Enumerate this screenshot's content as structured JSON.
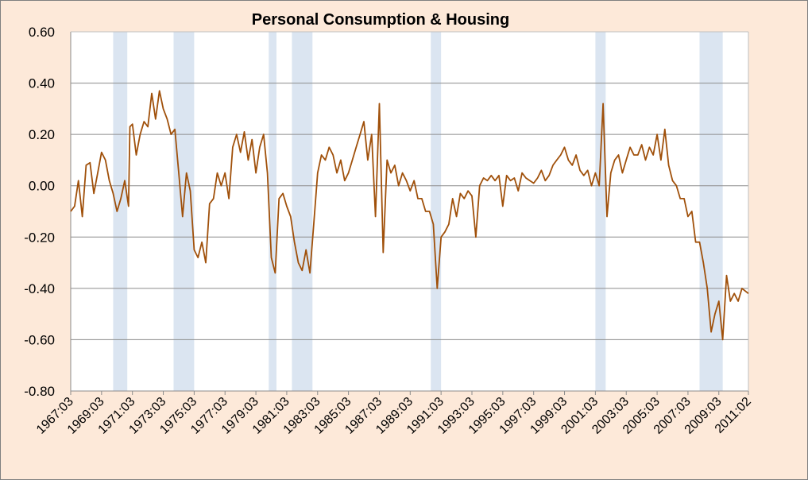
{
  "chart_data": {
    "type": "line",
    "title": "Personal Consumption & Housing",
    "xlabel": "",
    "ylabel": "",
    "ylim": [
      -0.8,
      0.6
    ],
    "y_ticks": [
      0.6,
      0.4,
      0.2,
      0.0,
      -0.2,
      -0.4,
      -0.6,
      -0.8
    ],
    "y_tick_labels": [
      "0.60",
      "0.40",
      "0.20",
      "0.00",
      "-0.20",
      "-0.40",
      "-0.60",
      "-0.80"
    ],
    "x_range": [
      "1967-03",
      "2011-02"
    ],
    "x_ticks": [
      "1967-03",
      "1969-03",
      "1971-03",
      "1973-03",
      "1975-03",
      "1977-03",
      "1979-03",
      "1981-03",
      "1983-03",
      "1985-03",
      "1987-03",
      "1989-03",
      "1991-03",
      "1993-03",
      "1995-03",
      "1997-03",
      "1999-03",
      "2001-03",
      "2003-03",
      "2005-03",
      "2007-03",
      "2009-03",
      "2011-02"
    ],
    "x_tick_labels": [
      "1967:03",
      "1969:03",
      "1971:03",
      "1973:03",
      "1975:03",
      "1977:03",
      "1979:03",
      "1981:03",
      "1983:03",
      "1985:03",
      "1987:03",
      "1989:03",
      "1991:03",
      "1993:03",
      "1995:03",
      "1997:03",
      "1999:03",
      "2001:03",
      "2003:03",
      "2005:03",
      "2007:03",
      "2009:03",
      "2011:02"
    ],
    "grid": {
      "horizontal": true,
      "vertical": false
    },
    "legend": "none",
    "recession_bands": [
      {
        "start": "1969-12",
        "end": "1970-11"
      },
      {
        "start": "1973-11",
        "end": "1975-03"
      },
      {
        "start": "1980-01",
        "end": "1980-07"
      },
      {
        "start": "1981-07",
        "end": "1982-11"
      },
      {
        "start": "1990-07",
        "end": "1991-03"
      },
      {
        "start": "2001-03",
        "end": "2001-11"
      },
      {
        "start": "2007-12",
        "end": "2009-06"
      }
    ],
    "series": [
      {
        "color": "#a0500a",
        "points": [
          [
            "1967-03",
            -0.1
          ],
          [
            "1967-06",
            -0.08
          ],
          [
            "1967-09",
            0.02
          ],
          [
            "1967-12",
            -0.12
          ],
          [
            "1968-03",
            0.08
          ],
          [
            "1968-06",
            0.09
          ],
          [
            "1968-09",
            -0.03
          ],
          [
            "1968-12",
            0.05
          ],
          [
            "1969-03",
            0.13
          ],
          [
            "1969-06",
            0.1
          ],
          [
            "1969-09",
            0.02
          ],
          [
            "1969-12",
            -0.03
          ],
          [
            "1970-03",
            -0.1
          ],
          [
            "1970-06",
            -0.05
          ],
          [
            "1970-09",
            0.02
          ],
          [
            "1970-12",
            -0.08
          ],
          [
            "1971-01",
            0.23
          ],
          [
            "1971-03",
            0.24
          ],
          [
            "1971-06",
            0.12
          ],
          [
            "1971-09",
            0.2
          ],
          [
            "1971-12",
            0.25
          ],
          [
            "1972-03",
            0.23
          ],
          [
            "1972-06",
            0.36
          ],
          [
            "1972-09",
            0.26
          ],
          [
            "1972-12",
            0.37
          ],
          [
            "1973-03",
            0.3
          ],
          [
            "1973-06",
            0.26
          ],
          [
            "1973-09",
            0.2
          ],
          [
            "1973-12",
            0.22
          ],
          [
            "1974-03",
            0.05
          ],
          [
            "1974-06",
            -0.12
          ],
          [
            "1974-09",
            0.05
          ],
          [
            "1974-12",
            -0.02
          ],
          [
            "1975-03",
            -0.25
          ],
          [
            "1975-06",
            -0.28
          ],
          [
            "1975-09",
            -0.22
          ],
          [
            "1975-12",
            -0.3
          ],
          [
            "1976-03",
            -0.07
          ],
          [
            "1976-06",
            -0.05
          ],
          [
            "1976-09",
            0.05
          ],
          [
            "1976-12",
            0.0
          ],
          [
            "1977-03",
            0.05
          ],
          [
            "1977-06",
            -0.05
          ],
          [
            "1977-09",
            0.15
          ],
          [
            "1977-12",
            0.2
          ],
          [
            "1978-03",
            0.13
          ],
          [
            "1978-06",
            0.21
          ],
          [
            "1978-09",
            0.1
          ],
          [
            "1978-12",
            0.18
          ],
          [
            "1979-03",
            0.05
          ],
          [
            "1979-06",
            0.15
          ],
          [
            "1979-09",
            0.2
          ],
          [
            "1979-12",
            0.05
          ],
          [
            "1980-03",
            -0.28
          ],
          [
            "1980-06",
            -0.34
          ],
          [
            "1980-09",
            -0.05
          ],
          [
            "1980-12",
            -0.03
          ],
          [
            "1981-03",
            -0.08
          ],
          [
            "1981-06",
            -0.12
          ],
          [
            "1981-09",
            -0.22
          ],
          [
            "1981-12",
            -0.3
          ],
          [
            "1982-03",
            -0.33
          ],
          [
            "1982-06",
            -0.25
          ],
          [
            "1982-09",
            -0.34
          ],
          [
            "1982-12",
            -0.15
          ],
          [
            "1983-03",
            0.05
          ],
          [
            "1983-06",
            0.12
          ],
          [
            "1983-09",
            0.1
          ],
          [
            "1983-12",
            0.15
          ],
          [
            "1984-03",
            0.12
          ],
          [
            "1984-06",
            0.05
          ],
          [
            "1984-09",
            0.1
          ],
          [
            "1984-12",
            0.02
          ],
          [
            "1985-03",
            0.05
          ],
          [
            "1985-06",
            0.1
          ],
          [
            "1985-09",
            0.15
          ],
          [
            "1985-12",
            0.2
          ],
          [
            "1986-03",
            0.25
          ],
          [
            "1986-06",
            0.1
          ],
          [
            "1986-09",
            0.2
          ],
          [
            "1986-12",
            -0.12
          ],
          [
            "1987-03",
            0.32
          ],
          [
            "1987-06",
            -0.26
          ],
          [
            "1987-09",
            0.1
          ],
          [
            "1987-12",
            0.05
          ],
          [
            "1988-03",
            0.08
          ],
          [
            "1988-06",
            0.0
          ],
          [
            "1988-09",
            0.05
          ],
          [
            "1988-12",
            0.02
          ],
          [
            "1989-03",
            -0.02
          ],
          [
            "1989-06",
            0.02
          ],
          [
            "1989-09",
            -0.05
          ],
          [
            "1989-12",
            -0.05
          ],
          [
            "1990-03",
            -0.1
          ],
          [
            "1990-06",
            -0.1
          ],
          [
            "1990-09",
            -0.15
          ],
          [
            "1990-12",
            -0.4
          ],
          [
            "1991-03",
            -0.2
          ],
          [
            "1991-06",
            -0.18
          ],
          [
            "1991-09",
            -0.15
          ],
          [
            "1991-12",
            -0.05
          ],
          [
            "1992-03",
            -0.12
          ],
          [
            "1992-06",
            -0.03
          ],
          [
            "1992-09",
            -0.05
          ],
          [
            "1992-12",
            -0.02
          ],
          [
            "1993-03",
            -0.04
          ],
          [
            "1993-06",
            -0.2
          ],
          [
            "1993-09",
            0.0
          ],
          [
            "1993-12",
            0.03
          ],
          [
            "1994-03",
            0.02
          ],
          [
            "1994-06",
            0.04
          ],
          [
            "1994-09",
            0.02
          ],
          [
            "1994-12",
            0.04
          ],
          [
            "1995-03",
            -0.08
          ],
          [
            "1995-06",
            0.04
          ],
          [
            "1995-09",
            0.02
          ],
          [
            "1995-12",
            0.03
          ],
          [
            "1996-03",
            -0.02
          ],
          [
            "1996-06",
            0.05
          ],
          [
            "1996-09",
            0.03
          ],
          [
            "1996-12",
            0.02
          ],
          [
            "1997-03",
            0.01
          ],
          [
            "1997-06",
            0.03
          ],
          [
            "1997-09",
            0.06
          ],
          [
            "1997-12",
            0.02
          ],
          [
            "1998-03",
            0.04
          ],
          [
            "1998-06",
            0.08
          ],
          [
            "1998-09",
            0.1
          ],
          [
            "1998-12",
            0.12
          ],
          [
            "1999-03",
            0.15
          ],
          [
            "1999-06",
            0.1
          ],
          [
            "1999-09",
            0.08
          ],
          [
            "1999-12",
            0.12
          ],
          [
            "2000-03",
            0.06
          ],
          [
            "2000-06",
            0.04
          ],
          [
            "2000-09",
            0.06
          ],
          [
            "2000-12",
            0.0
          ],
          [
            "2001-03",
            0.05
          ],
          [
            "2001-06",
            0.0
          ],
          [
            "2001-09",
            0.32
          ],
          [
            "2001-12",
            -0.12
          ],
          [
            "2002-03",
            0.05
          ],
          [
            "2002-06",
            0.1
          ],
          [
            "2002-09",
            0.12
          ],
          [
            "2002-12",
            0.05
          ],
          [
            "2003-03",
            0.1
          ],
          [
            "2003-06",
            0.15
          ],
          [
            "2003-09",
            0.12
          ],
          [
            "2003-12",
            0.12
          ],
          [
            "2004-03",
            0.16
          ],
          [
            "2004-06",
            0.1
          ],
          [
            "2004-09",
            0.15
          ],
          [
            "2004-12",
            0.12
          ],
          [
            "2005-03",
            0.2
          ],
          [
            "2005-06",
            0.1
          ],
          [
            "2005-09",
            0.22
          ],
          [
            "2005-12",
            0.08
          ],
          [
            "2006-03",
            0.02
          ],
          [
            "2006-06",
            0.0
          ],
          [
            "2006-09",
            -0.05
          ],
          [
            "2006-12",
            -0.05
          ],
          [
            "2007-03",
            -0.12
          ],
          [
            "2007-06",
            -0.1
          ],
          [
            "2007-09",
            -0.22
          ],
          [
            "2007-12",
            -0.22
          ],
          [
            "2008-03",
            -0.3
          ],
          [
            "2008-06",
            -0.4
          ],
          [
            "2008-09",
            -0.57
          ],
          [
            "2008-12",
            -0.5
          ],
          [
            "2009-03",
            -0.45
          ],
          [
            "2009-06",
            -0.6
          ],
          [
            "2009-09",
            -0.35
          ],
          [
            "2009-12",
            -0.45
          ],
          [
            "2010-03",
            -0.42
          ],
          [
            "2010-06",
            -0.45
          ],
          [
            "2010-09",
            -0.4
          ],
          [
            "2011-02",
            -0.42
          ]
        ]
      }
    ]
  }
}
